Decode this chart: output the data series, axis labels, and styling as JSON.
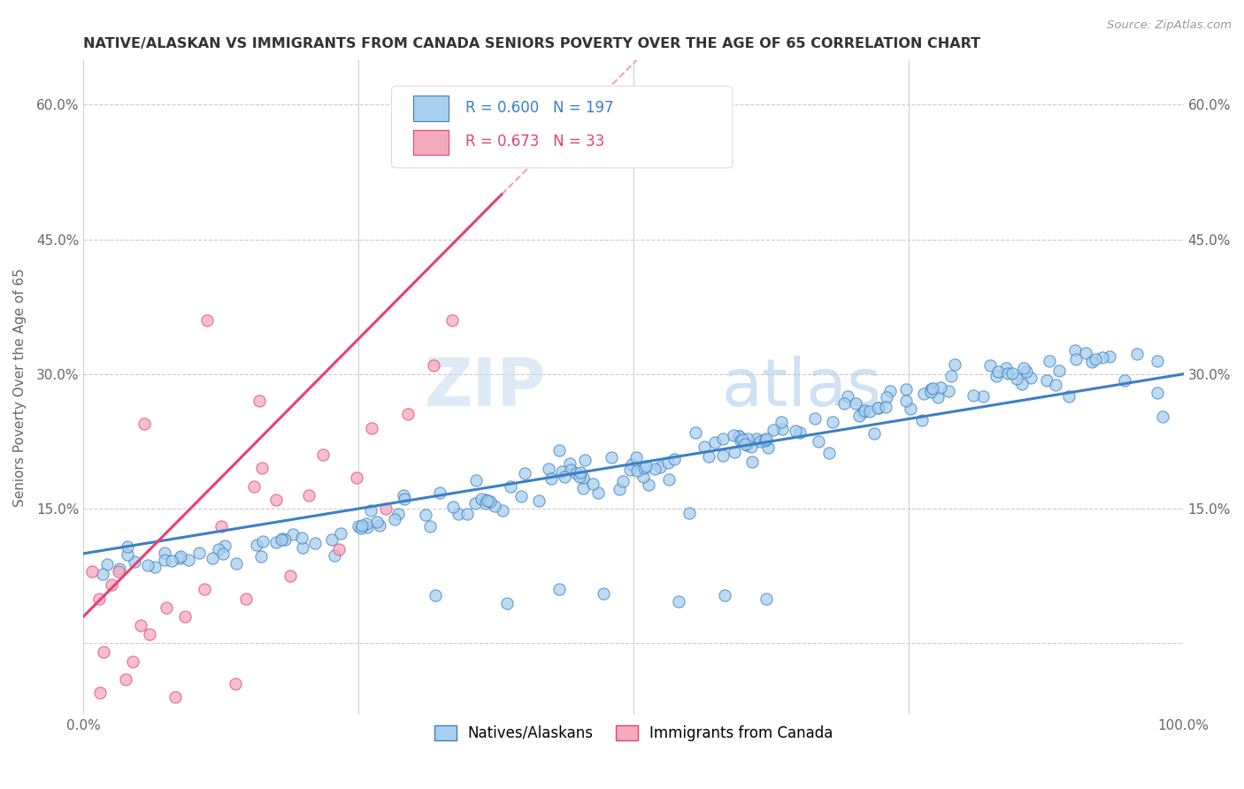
{
  "title": "NATIVE/ALASKAN VS IMMIGRANTS FROM CANADA SENIORS POVERTY OVER THE AGE OF 65 CORRELATION CHART",
  "source_text": "Source: ZipAtlas.com",
  "ylabel": "Seniors Poverty Over the Age of 65",
  "xlim": [
    0,
    1.0
  ],
  "ylim": [
    -0.08,
    0.65
  ],
  "blue_color": "#A8CFED",
  "pink_color": "#F4AABE",
  "blue_line_color": "#3B7FC4",
  "pink_line_color": "#E84070",
  "pink_dashed_color": "#F0A0B8",
  "watermark_zip": "ZIP",
  "watermark_atlas": "atlas",
  "legend_R_blue": "0.600",
  "legend_N_blue": "197",
  "legend_R_pink": "0.673",
  "legend_N_pink": "33",
  "grid_color": "#CCCCCC",
  "title_color": "#333333",
  "label_color": "#666666",
  "blue_trend": [
    0.0,
    0.1,
    1.0,
    0.3
  ],
  "pink_trend_solid": [
    0.0,
    0.03,
    0.38,
    0.5
  ],
  "pink_trend_dashed": [
    0.38,
    0.5,
    0.7,
    0.89
  ],
  "blue_scatter": [
    [
      0.695,
      0.275
    ],
    [
      0.286,
      0.144
    ],
    [
      0.226,
      0.116
    ],
    [
      0.551,
      0.145
    ],
    [
      0.719,
      0.234
    ],
    [
      0.423,
      0.194
    ],
    [
      0.981,
      0.253
    ],
    [
      0.958,
      0.322
    ],
    [
      0.341,
      0.144
    ],
    [
      0.128,
      0.109
    ],
    [
      0.432,
      0.215
    ],
    [
      0.291,
      0.165
    ],
    [
      0.612,
      0.228
    ],
    [
      0.139,
      0.089
    ],
    [
      0.292,
      0.161
    ],
    [
      0.366,
      0.16
    ],
    [
      0.456,
      0.204
    ],
    [
      0.786,
      0.281
    ],
    [
      0.199,
      0.107
    ],
    [
      0.514,
      0.177
    ],
    [
      0.592,
      0.213
    ],
    [
      0.046,
      0.091
    ],
    [
      0.608,
      0.202
    ],
    [
      0.861,
      0.296
    ],
    [
      0.708,
      0.257
    ],
    [
      0.021,
      0.088
    ],
    [
      0.976,
      0.279
    ],
    [
      0.468,
      0.168
    ],
    [
      0.976,
      0.315
    ],
    [
      0.792,
      0.311
    ],
    [
      0.524,
      0.196
    ],
    [
      0.087,
      0.095
    ],
    [
      0.425,
      0.184
    ],
    [
      0.839,
      0.307
    ],
    [
      0.357,
      0.182
    ],
    [
      0.04,
      0.099
    ],
    [
      0.181,
      0.117
    ],
    [
      0.531,
      0.201
    ],
    [
      0.401,
      0.189
    ],
    [
      0.933,
      0.32
    ],
    [
      0.681,
      0.247
    ],
    [
      0.876,
      0.293
    ],
    [
      0.896,
      0.275
    ],
    [
      0.123,
      0.105
    ],
    [
      0.678,
      0.212
    ],
    [
      0.315,
      0.13
    ],
    [
      0.228,
      0.098
    ],
    [
      0.454,
      0.173
    ],
    [
      0.748,
      0.283
    ],
    [
      0.635,
      0.239
    ],
    [
      0.269,
      0.131
    ],
    [
      0.04,
      0.108
    ],
    [
      0.381,
      0.148
    ],
    [
      0.762,
      0.249
    ],
    [
      0.324,
      0.168
    ],
    [
      0.556,
      0.235
    ],
    [
      0.161,
      0.097
    ],
    [
      0.596,
      0.231
    ],
    [
      0.901,
      0.326
    ],
    [
      0.702,
      0.267
    ],
    [
      0.033,
      0.083
    ],
    [
      0.627,
      0.238
    ],
    [
      0.581,
      0.209
    ],
    [
      0.48,
      0.207
    ],
    [
      0.857,
      0.303
    ],
    [
      0.349,
      0.144
    ],
    [
      0.777,
      0.274
    ],
    [
      0.532,
      0.183
    ],
    [
      0.498,
      0.199
    ],
    [
      0.622,
      0.218
    ],
    [
      0.117,
      0.095
    ],
    [
      0.435,
      0.191
    ],
    [
      0.789,
      0.298
    ],
    [
      0.065,
      0.085
    ],
    [
      0.564,
      0.219
    ],
    [
      0.442,
      0.2
    ],
    [
      0.83,
      0.298
    ],
    [
      0.946,
      0.293
    ],
    [
      0.19,
      0.121
    ],
    [
      0.603,
      0.221
    ],
    [
      0.283,
      0.138
    ],
    [
      0.752,
      0.261
    ],
    [
      0.668,
      0.225
    ],
    [
      0.388,
      0.175
    ],
    [
      0.509,
      0.186
    ],
    [
      0.074,
      0.101
    ],
    [
      0.818,
      0.275
    ],
    [
      0.723,
      0.262
    ],
    [
      0.157,
      0.11
    ],
    [
      0.634,
      0.247
    ],
    [
      0.502,
      0.207
    ],
    [
      0.884,
      0.288
    ],
    [
      0.261,
      0.148
    ],
    [
      0.574,
      0.224
    ],
    [
      0.414,
      0.159
    ],
    [
      0.733,
      0.281
    ],
    [
      0.095,
      0.093
    ],
    [
      0.487,
      0.172
    ],
    [
      0.809,
      0.276
    ],
    [
      0.336,
      0.152
    ],
    [
      0.651,
      0.235
    ],
    [
      0.017,
      0.077
    ],
    [
      0.568,
      0.208
    ],
    [
      0.443,
      0.193
    ],
    [
      0.878,
      0.315
    ],
    [
      0.21,
      0.112
    ],
    [
      0.77,
      0.283
    ],
    [
      0.49,
      0.181
    ],
    [
      0.596,
      0.231
    ],
    [
      0.127,
      0.1
    ],
    [
      0.691,
      0.267
    ],
    [
      0.374,
      0.153
    ],
    [
      0.824,
      0.31
    ],
    [
      0.258,
      0.129
    ],
    [
      0.705,
      0.254
    ],
    [
      0.463,
      0.178
    ],
    [
      0.537,
      0.205
    ],
    [
      0.163,
      0.114
    ],
    [
      0.853,
      0.289
    ],
    [
      0.73,
      0.274
    ],
    [
      0.311,
      0.143
    ],
    [
      0.581,
      0.228
    ],
    [
      0.058,
      0.087
    ],
    [
      0.647,
      0.237
    ],
    [
      0.398,
      0.164
    ],
    [
      0.887,
      0.304
    ],
    [
      0.234,
      0.122
    ],
    [
      0.748,
      0.27
    ],
    [
      0.519,
      0.194
    ],
    [
      0.619,
      0.227
    ],
    [
      0.088,
      0.097
    ],
    [
      0.71,
      0.259
    ],
    [
      0.356,
      0.156
    ],
    [
      0.831,
      0.303
    ],
    [
      0.267,
      0.135
    ],
    [
      0.591,
      0.232
    ],
    [
      0.437,
      0.186
    ],
    [
      0.902,
      0.317
    ],
    [
      0.198,
      0.118
    ],
    [
      0.764,
      0.278
    ],
    [
      0.497,
      0.193
    ],
    [
      0.607,
      0.219
    ],
    [
      0.105,
      0.101
    ],
    [
      0.715,
      0.258
    ],
    [
      0.362,
      0.161
    ],
    [
      0.84,
      0.301
    ],
    [
      0.25,
      0.13
    ],
    [
      0.597,
      0.226
    ],
    [
      0.448,
      0.189
    ],
    [
      0.926,
      0.319
    ],
    [
      0.175,
      0.113
    ],
    [
      0.779,
      0.285
    ],
    [
      0.503,
      0.192
    ],
    [
      0.615,
      0.225
    ],
    [
      0.074,
      0.093
    ],
    [
      0.722,
      0.262
    ],
    [
      0.366,
      0.156
    ],
    [
      0.855,
      0.307
    ],
    [
      0.257,
      0.133
    ],
    [
      0.604,
      0.228
    ],
    [
      0.454,
      0.185
    ],
    [
      0.911,
      0.323
    ],
    [
      0.183,
      0.116
    ],
    [
      0.77,
      0.28
    ],
    [
      0.51,
      0.195
    ],
    [
      0.62,
      0.226
    ],
    [
      0.665,
      0.251
    ],
    [
      0.37,
      0.158
    ],
    [
      0.848,
      0.295
    ],
    [
      0.252,
      0.128
    ],
    [
      0.599,
      0.227
    ],
    [
      0.451,
      0.186
    ],
    [
      0.917,
      0.314
    ],
    [
      0.18,
      0.116
    ],
    [
      0.772,
      0.284
    ],
    [
      0.511,
      0.197
    ],
    [
      0.621,
      0.228
    ],
    [
      0.08,
      0.092
    ],
    [
      0.729,
      0.263
    ],
    [
      0.367,
      0.159
    ],
    [
      0.844,
      0.301
    ],
    [
      0.253,
      0.131
    ],
    [
      0.601,
      0.222
    ],
    [
      0.452,
      0.19
    ],
    [
      0.92,
      0.317
    ],
    [
      0.541,
      0.047
    ],
    [
      0.432,
      0.06
    ],
    [
      0.621,
      0.05
    ],
    [
      0.583,
      0.053
    ],
    [
      0.473,
      0.055
    ],
    [
      0.385,
      0.045
    ],
    [
      0.32,
      0.053
    ]
  ],
  "pink_scatter": [
    [
      0.014,
      0.05
    ],
    [
      0.025,
      0.065
    ],
    [
      0.032,
      0.08
    ],
    [
      0.018,
      -0.01
    ],
    [
      0.045,
      -0.02
    ],
    [
      0.052,
      0.02
    ],
    [
      0.038,
      -0.04
    ],
    [
      0.06,
      0.01
    ],
    [
      0.008,
      0.08
    ],
    [
      0.075,
      0.04
    ],
    [
      0.083,
      -0.06
    ],
    [
      0.092,
      0.03
    ],
    [
      0.015,
      -0.055
    ],
    [
      0.11,
      0.06
    ],
    [
      0.125,
      0.13
    ],
    [
      0.138,
      -0.045
    ],
    [
      0.148,
      0.05
    ],
    [
      0.162,
      0.195
    ],
    [
      0.055,
      0.245
    ],
    [
      0.175,
      0.16
    ],
    [
      0.188,
      0.075
    ],
    [
      0.112,
      0.36
    ],
    [
      0.205,
      0.165
    ],
    [
      0.218,
      0.21
    ],
    [
      0.232,
      0.105
    ],
    [
      0.16,
      0.27
    ],
    [
      0.248,
      0.185
    ],
    [
      0.262,
      0.24
    ],
    [
      0.275,
      0.15
    ],
    [
      0.295,
      0.255
    ],
    [
      0.155,
      0.175
    ],
    [
      0.318,
      0.31
    ],
    [
      0.335,
      0.36
    ]
  ]
}
